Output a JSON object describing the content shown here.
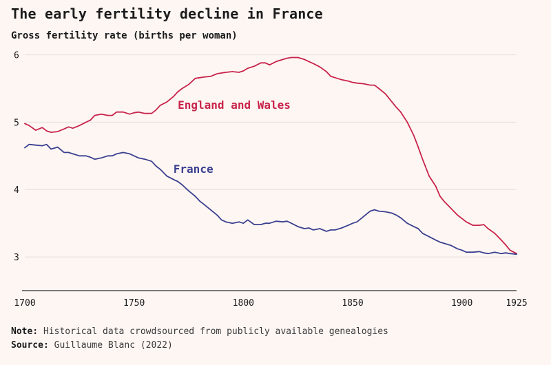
{
  "title": "The early fertility decline in France",
  "subtitle": "Gross fertility rate (births per woman)",
  "note_label": "Note:",
  "note_text": "Historical data crowdsourced from publicly available genealogies",
  "source_label": "Source:",
  "source_text": "Guillaume Blanc (2022)",
  "chart_data": {
    "type": "line",
    "title": "The early fertility decline in France",
    "subtitle": "Gross fertility rate (births per woman)",
    "xlim": [
      1700,
      1925
    ],
    "ylim": [
      2.5,
      6.2
    ],
    "x_ticks": [
      {
        "value": 1700,
        "label": "1700"
      },
      {
        "value": 1750,
        "label": "1750"
      },
      {
        "value": 1800,
        "label": "1800"
      },
      {
        "value": 1850,
        "label": "1850"
      },
      {
        "value": 1900,
        "label": "1900"
      },
      {
        "value": 1925,
        "label": "1925"
      }
    ],
    "y_ticks": [
      {
        "value": 3,
        "label": "3"
      },
      {
        "value": 4,
        "label": "4"
      },
      {
        "value": 5,
        "label": "5"
      },
      {
        "value": 6,
        "label": "6"
      }
    ],
    "grid": true,
    "legend": "direct labels",
    "series": [
      {
        "name": "England and Wales",
        "color": "#c8234a",
        "label_at": [
          1770,
          5.2
        ],
        "x": [
          1700,
          1702,
          1705,
          1708,
          1710,
          1712,
          1715,
          1718,
          1720,
          1722,
          1725,
          1728,
          1730,
          1732,
          1735,
          1738,
          1740,
          1742,
          1745,
          1748,
          1750,
          1752,
          1755,
          1758,
          1760,
          1762,
          1765,
          1768,
          1770,
          1772,
          1775,
          1778,
          1780,
          1782,
          1785,
          1788,
          1790,
          1792,
          1795,
          1798,
          1800,
          1802,
          1805,
          1808,
          1810,
          1812,
          1815,
          1818,
          1820,
          1822,
          1825,
          1828,
          1830,
          1832,
          1835,
          1838,
          1840,
          1842,
          1845,
          1848,
          1850,
          1852,
          1855,
          1858,
          1860,
          1862,
          1865,
          1868,
          1870,
          1872,
          1875,
          1878,
          1880,
          1882,
          1885,
          1888,
          1890,
          1892,
          1895,
          1898,
          1900,
          1902,
          1905,
          1908,
          1910,
          1912,
          1915,
          1918,
          1920,
          1922,
          1925
        ],
        "y": [
          4.98,
          4.95,
          4.88,
          4.92,
          4.87,
          4.85,
          4.86,
          4.9,
          4.93,
          4.91,
          4.95,
          5.0,
          5.03,
          5.1,
          5.12,
          5.1,
          5.1,
          5.15,
          5.15,
          5.12,
          5.14,
          5.15,
          5.13,
          5.13,
          5.18,
          5.25,
          5.3,
          5.38,
          5.45,
          5.5,
          5.56,
          5.65,
          5.66,
          5.67,
          5.68,
          5.72,
          5.73,
          5.74,
          5.75,
          5.74,
          5.76,
          5.8,
          5.83,
          5.88,
          5.88,
          5.85,
          5.9,
          5.93,
          5.95,
          5.96,
          5.96,
          5.93,
          5.9,
          5.87,
          5.82,
          5.75,
          5.68,
          5.66,
          5.63,
          5.61,
          5.59,
          5.58,
          5.57,
          5.55,
          5.55,
          5.5,
          5.42,
          5.3,
          5.22,
          5.15,
          5.0,
          4.8,
          4.63,
          4.45,
          4.2,
          4.05,
          3.9,
          3.82,
          3.72,
          3.62,
          3.57,
          3.52,
          3.47,
          3.47,
          3.48,
          3.42,
          3.35,
          3.25,
          3.18,
          3.1,
          3.05
        ]
      },
      {
        "name": "France",
        "color": "#3a3f8f",
        "label_at": [
          1768,
          4.25
        ],
        "x": [
          1700,
          1702,
          1705,
          1708,
          1710,
          1712,
          1715,
          1718,
          1720,
          1722,
          1725,
          1728,
          1730,
          1732,
          1735,
          1738,
          1740,
          1742,
          1745,
          1748,
          1750,
          1752,
          1755,
          1758,
          1760,
          1762,
          1765,
          1768,
          1770,
          1772,
          1775,
          1778,
          1780,
          1782,
          1785,
          1788,
          1790,
          1792,
          1795,
          1798,
          1800,
          1802,
          1805,
          1808,
          1810,
          1812,
          1815,
          1818,
          1820,
          1822,
          1825,
          1828,
          1830,
          1832,
          1835,
          1838,
          1840,
          1842,
          1845,
          1848,
          1850,
          1852,
          1855,
          1858,
          1860,
          1862,
          1865,
          1868,
          1870,
          1872,
          1875,
          1878,
          1880,
          1882,
          1885,
          1888,
          1890,
          1892,
          1895,
          1898,
          1900,
          1902,
          1905,
          1908,
          1910,
          1912,
          1915,
          1918,
          1920,
          1922,
          1925
        ],
        "y": [
          4.62,
          4.67,
          4.66,
          4.65,
          4.67,
          4.6,
          4.63,
          4.55,
          4.55,
          4.53,
          4.5,
          4.5,
          4.48,
          4.45,
          4.47,
          4.5,
          4.5,
          4.53,
          4.55,
          4.53,
          4.5,
          4.47,
          4.45,
          4.42,
          4.35,
          4.3,
          4.2,
          4.15,
          4.12,
          4.07,
          3.98,
          3.9,
          3.83,
          3.78,
          3.7,
          3.62,
          3.55,
          3.52,
          3.5,
          3.52,
          3.5,
          3.55,
          3.48,
          3.48,
          3.5,
          3.5,
          3.53,
          3.52,
          3.53,
          3.5,
          3.45,
          3.42,
          3.43,
          3.4,
          3.42,
          3.38,
          3.4,
          3.4,
          3.43,
          3.47,
          3.5,
          3.52,
          3.6,
          3.68,
          3.7,
          3.68,
          3.67,
          3.65,
          3.62,
          3.58,
          3.5,
          3.45,
          3.42,
          3.35,
          3.3,
          3.25,
          3.22,
          3.2,
          3.17,
          3.12,
          3.1,
          3.07,
          3.07,
          3.08,
          3.06,
          3.05,
          3.07,
          3.05,
          3.06,
          3.05,
          3.04
        ]
      }
    ]
  }
}
